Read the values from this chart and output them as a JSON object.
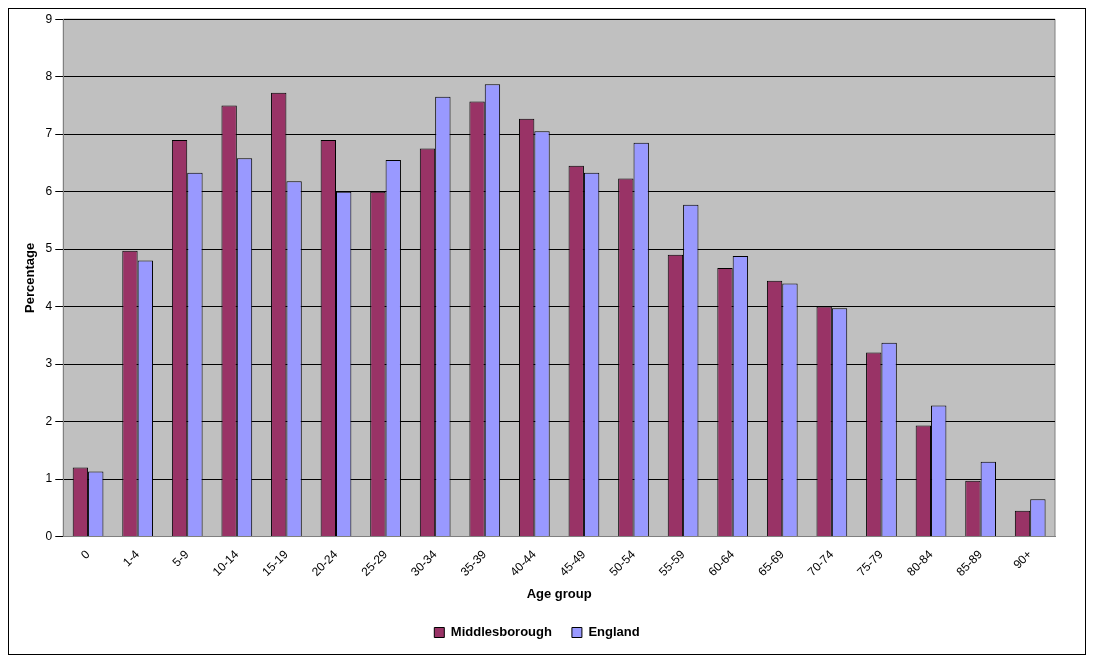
{
  "chart_data": {
    "type": "bar",
    "xlabel": "Age group",
    "ylabel": "Percentage",
    "categories": [
      "0",
      "1-4",
      "5-9",
      "10-14",
      "15-19",
      "20-24",
      "25-29",
      "30-34",
      "35-39",
      "40-44",
      "45-49",
      "50-54",
      "55-59",
      "60-64",
      "65-69",
      "70-74",
      "75-79",
      "80-84",
      "85-89",
      "90+"
    ],
    "series": [
      {
        "name": "Middlesborough",
        "color": "#993366",
        "values": [
          1.2,
          4.97,
          6.9,
          7.5,
          7.72,
          6.9,
          6.0,
          6.75,
          7.57,
          7.27,
          6.45,
          6.23,
          4.9,
          4.67,
          4.45,
          4.0,
          3.2,
          1.93,
          0.97,
          0.45
        ]
      },
      {
        "name": "England",
        "color": "#9999ff",
        "values": [
          1.13,
          4.8,
          6.33,
          6.58,
          6.18,
          6.0,
          6.55,
          7.65,
          7.87,
          7.05,
          6.33,
          6.85,
          5.77,
          4.88,
          4.4,
          3.97,
          3.37,
          2.28,
          1.3,
          0.65
        ]
      }
    ],
    "ylim": [
      0,
      9
    ],
    "yticks": [
      0,
      1,
      2,
      3,
      4,
      5,
      6,
      7,
      8,
      9
    ],
    "grid": "y",
    "legend": "bottom"
  }
}
